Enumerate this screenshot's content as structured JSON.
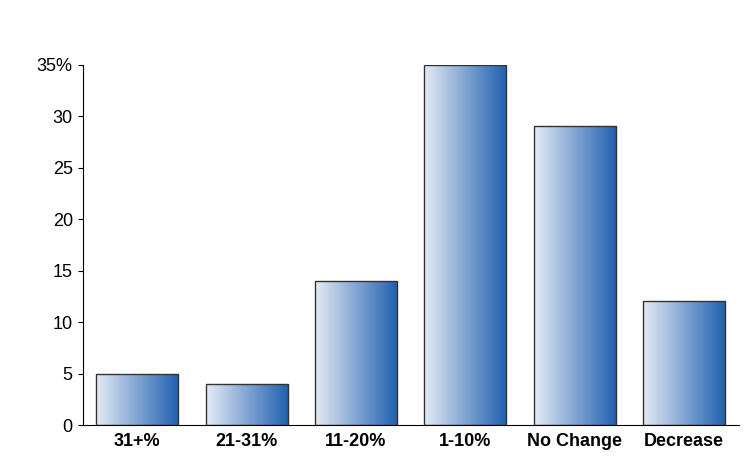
{
  "chart_data": {
    "type": "bar",
    "categories": [
      "31+%",
      "21-31%",
      "11-20%",
      "1-10%",
      "No Change",
      "Decrease"
    ],
    "values": [
      5,
      4,
      14,
      35,
      29,
      12
    ],
    "color": "#1f5fb0",
    "ylim": [
      0,
      35
    ],
    "yticks": [
      0,
      5,
      10,
      15,
      20,
      25,
      30,
      {
        "value": 35,
        "label": "35%"
      }
    ],
    "grid": false
  }
}
